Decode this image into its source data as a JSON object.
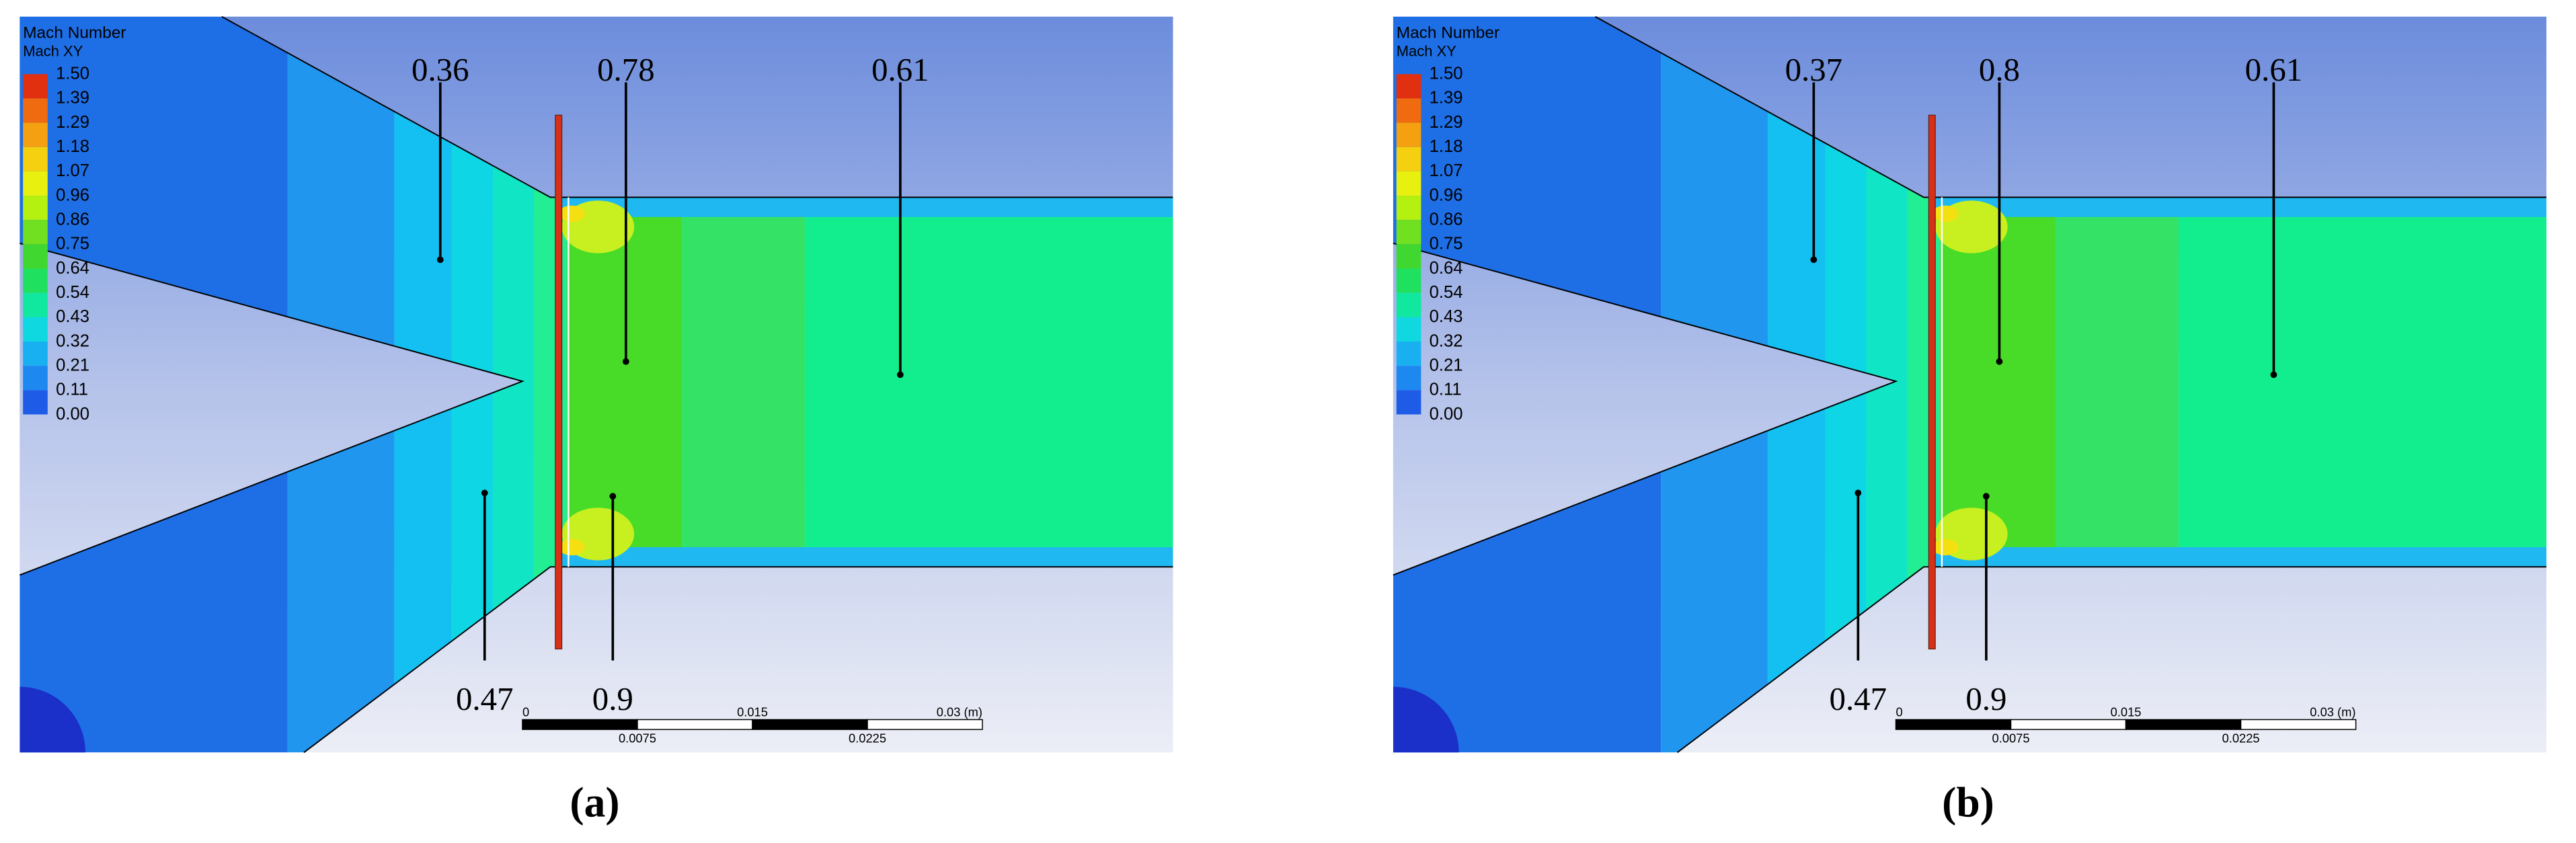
{
  "panels": [
    {
      "caption": "(a)",
      "legend": {
        "title": "Mach Number",
        "subtitle": "Mach XY",
        "levels": [
          "1.50",
          "1.39",
          "1.29",
          "1.18",
          "1.07",
          "0.96",
          "0.86",
          "0.75",
          "0.64",
          "0.54",
          "0.43",
          "0.32",
          "0.21",
          "0.11",
          "0.00"
        ]
      },
      "annotations": [
        "0.36",
        "0.78",
        "0.61",
        "0.47",
        "0.9"
      ],
      "scale_bar": {
        "top": [
          "0",
          "0.015",
          "0.03 (m)"
        ],
        "bottom": [
          "0.0075",
          "0.0225"
        ]
      }
    },
    {
      "caption": "(b)",
      "legend": {
        "title": "Mach Number",
        "subtitle": "Mach XY",
        "levels": [
          "1.50",
          "1.39",
          "1.29",
          "1.18",
          "1.07",
          "0.96",
          "0.86",
          "0.75",
          "0.64",
          "0.54",
          "0.43",
          "0.32",
          "0.21",
          "0.11",
          "0.00"
        ]
      },
      "annotations": [
        "0.37",
        "0.8",
        "0.61",
        "0.47",
        "0.9"
      ],
      "scale_bar": {
        "top": [
          "0",
          "0.015",
          "0.03 (m)"
        ],
        "bottom": [
          "0.0075",
          "0.0225"
        ]
      }
    }
  ]
}
